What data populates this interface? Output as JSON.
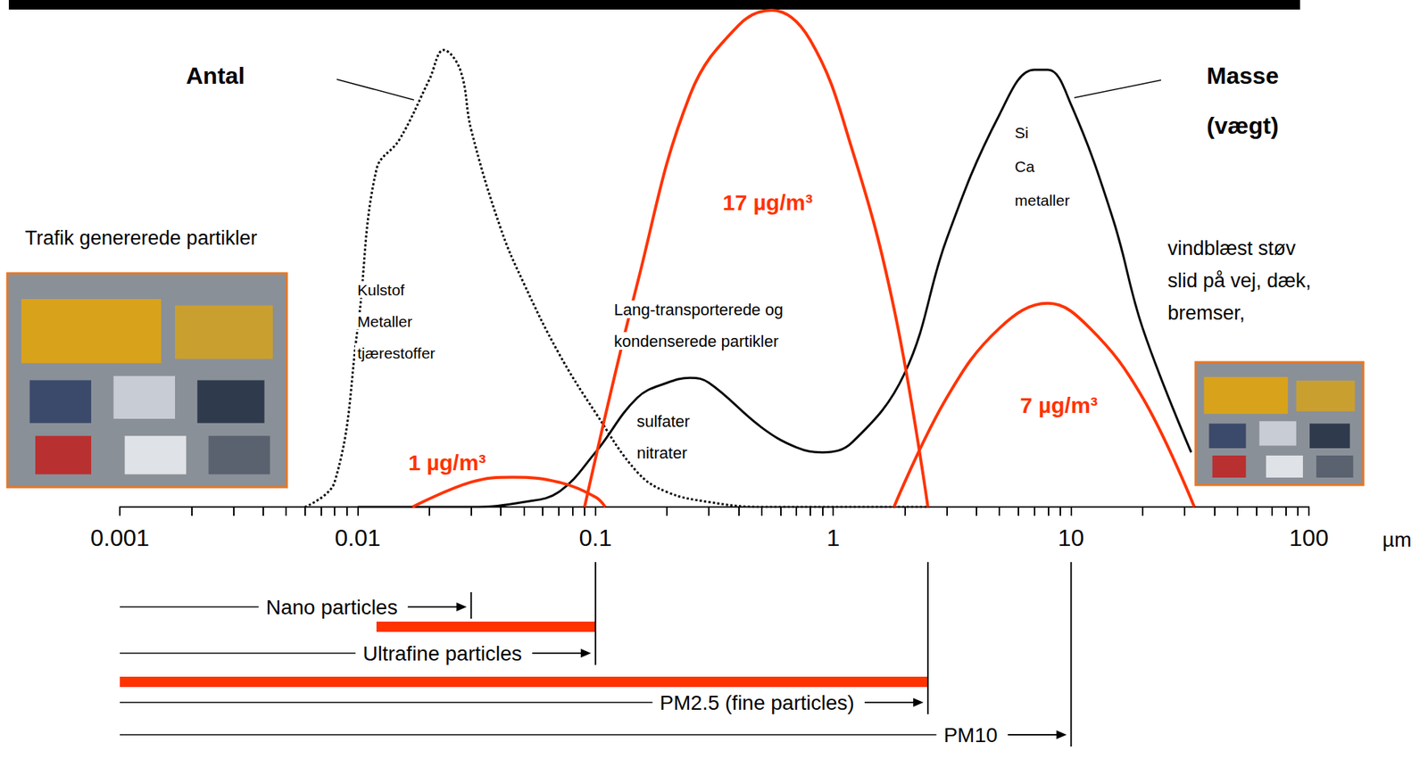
{
  "chart_data": {
    "type": "line",
    "log": "x",
    "grid": false,
    "tick_labels": "x",
    "x_label": "µm",
    "xlim": [
      0.001,
      100
    ],
    "xticks": [
      0.001,
      0.01,
      0.1,
      1,
      10,
      100
    ],
    "ylim": [
      0,
      100
    ],
    "series": [
      {
        "name": "Antal",
        "color": "#000000",
        "line_style": "dotted",
        "x": [
          0.006,
          0.008,
          0.01,
          0.012,
          0.015,
          0.02,
          0.023,
          0.027,
          0.03,
          0.04,
          0.05,
          0.07,
          0.1,
          0.15,
          0.2,
          0.3,
          0.5,
          1,
          2.5
        ],
        "values": [
          0,
          5,
          36,
          68,
          74,
          86,
          92,
          88,
          76,
          56,
          45,
          31,
          19,
          7,
          3,
          1,
          0,
          0,
          0
        ]
      },
      {
        "name": "Masse (vægt)",
        "color": "#000000",
        "line_style": "solid",
        "x": [
          0.01,
          0.03,
          0.05,
          0.07,
          0.1,
          0.15,
          0.2,
          0.25,
          0.3,
          0.5,
          0.7,
          0.9,
          1.2,
          2,
          3,
          5,
          7,
          8,
          10,
          15,
          20,
          32
        ],
        "values": [
          0,
          0,
          1,
          3,
          11,
          22,
          25,
          26,
          25,
          16,
          12,
          11,
          13,
          27,
          54,
          79,
          88,
          88,
          81,
          58,
          36,
          11
        ]
      },
      {
        "name": "1 µg/m³",
        "color": "#ff3300",
        "line_style": "solid",
        "x": [
          0.017,
          0.03,
          0.045,
          0.07,
          0.1,
          0.11
        ],
        "values": [
          0,
          5,
          6,
          5,
          2,
          0
        ]
      },
      {
        "name": "17 µg/m³",
        "color": "#ff3300",
        "line_style": "solid",
        "x": [
          0.09,
          0.15,
          0.25,
          0.4,
          0.55,
          0.8,
          1.2,
          1.8,
          2.5
        ],
        "values": [
          0,
          45,
          83,
          97,
          100,
          94,
          72,
          40,
          0
        ]
      },
      {
        "name": "7 µg/m³",
        "color": "#ff3300",
        "line_style": "solid",
        "x": [
          1.8,
          3,
          5,
          8,
          12,
          20,
          33
        ],
        "values": [
          0,
          22,
          36,
          41,
          36,
          22,
          0
        ]
      }
    ],
    "annotations": [
      {
        "lines": [
          "Trafik genererede partikler"
        ]
      },
      {
        "lines": [
          "Kulstof",
          "Metaller",
          "tjærestoffer"
        ]
      },
      {
        "lines": [
          "Lang-transporterede og",
          "kondenserede partikler"
        ]
      },
      {
        "lines": [
          "sulfater",
          "nitrater"
        ]
      },
      {
        "lines": [
          "Si",
          "Ca",
          "metaller"
        ]
      },
      {
        "lines": [
          "vindblæst støv",
          "slid på vej, dæk,",
          "bremser,"
        ]
      }
    ],
    "size_ranges": [
      {
        "label": "Nano particles",
        "from": 0.001,
        "to": 0.03
      },
      {
        "label": "Ultrafine particles",
        "from": 0.001,
        "to": 0.1
      },
      {
        "label": "PM2.5 (fine particles)",
        "from": 0.001,
        "to": 2.5
      },
      {
        "label": "PM10",
        "from": 0.001,
        "to": 10
      }
    ],
    "highlight_ranges": [
      {
        "from": 0.012,
        "to": 0.1,
        "color": "#ff3300"
      },
      {
        "from": 0.001,
        "to": 2.5,
        "color": "#ff3300"
      }
    ]
  }
}
